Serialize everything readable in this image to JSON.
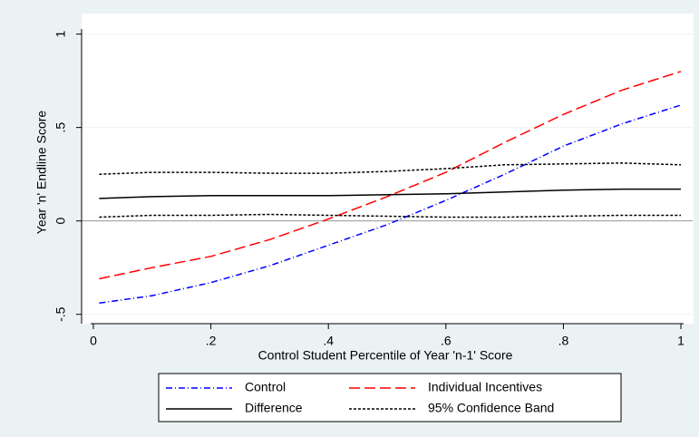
{
  "chart_data": {
    "type": "line",
    "ylabel": "Year 'n' Endline Score",
    "xlabel": "Control Student Percentile of Year 'n-1' Score",
    "x": [
      0.01,
      0.1,
      0.2,
      0.3,
      0.4,
      0.5,
      0.6,
      0.7,
      0.8,
      0.9,
      1
    ],
    "series": [
      {
        "name": "Control",
        "color": "#0000ff",
        "dash": "7,3,1,3",
        "values": [
          -0.44,
          -0.4,
          -0.33,
          -0.24,
          -0.13,
          -0.02,
          0.11,
          0.25,
          0.4,
          0.52,
          0.62
        ]
      },
      {
        "name": "Individual Incentives",
        "color": "#ff0000",
        "dash": "12,5",
        "values": [
          -0.31,
          -0.25,
          -0.19,
          -0.1,
          0.01,
          0.13,
          0.26,
          0.42,
          0.57,
          0.7,
          0.8
        ]
      },
      {
        "name": "Difference",
        "color": "#000000",
        "dash": "none",
        "values": [
          0.12,
          0.13,
          0.135,
          0.135,
          0.135,
          0.14,
          0.145,
          0.155,
          0.165,
          0.17,
          0.17
        ]
      },
      {
        "name": "95% Confidence Band",
        "color": "#000000",
        "dash": "3,2",
        "values": [
          0.25,
          0.26,
          0.26,
          0.255,
          0.255,
          0.265,
          0.28,
          0.3,
          0.305,
          0.31,
          0.3
        ],
        "lower": [
          0.02,
          0.03,
          0.03,
          0.035,
          0.03,
          0.025,
          0.02,
          0.02,
          0.025,
          0.03,
          0.03
        ]
      }
    ],
    "xlim": [
      -0.02,
      1.02
    ],
    "ylim": [
      -0.55,
      1.1
    ],
    "xticks": [
      0,
      {
        "value": 0.2,
        "label": ".2"
      },
      {
        "value": 0.4,
        "label": ".4"
      },
      {
        "value": 0.6,
        "label": ".6"
      },
      {
        "value": 0.8,
        "label": ".8"
      },
      1
    ],
    "yticks": [
      {
        "value": -0.5,
        "label": "-.5"
      },
      0,
      {
        "value": 0.5,
        "label": ".5"
      },
      1
    ],
    "grid": true,
    "reference_line": 0,
    "legend": "bottom"
  }
}
